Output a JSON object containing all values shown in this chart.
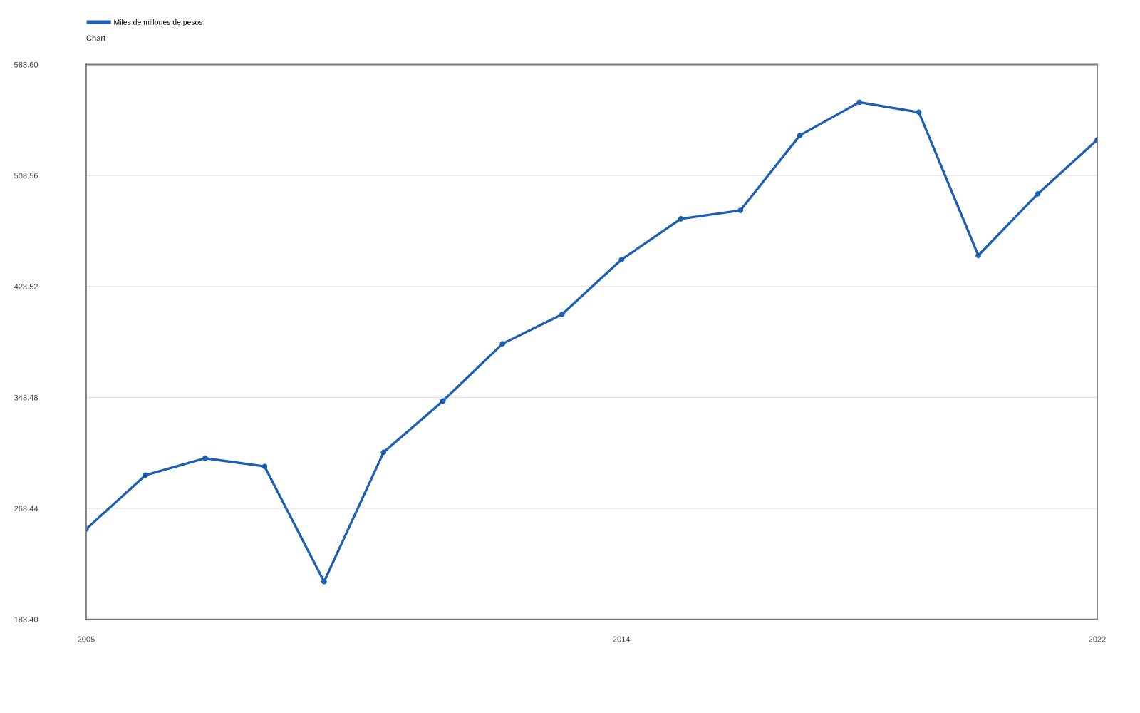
{
  "chart_data": {
    "type": "line",
    "title": "Chart",
    "x": [
      2005,
      2006,
      2007,
      2008,
      2009,
      2010,
      2011,
      2012,
      2013,
      2014,
      2015,
      2016,
      2017,
      2018,
      2019,
      2020,
      2021,
      2022
    ],
    "series": [
      {
        "name": "Miles de millones de pesos",
        "color": "#1c5fb3",
        "values": [
          253.5,
          292.5,
          304.6,
          298.7,
          215.6,
          308.9,
          346.0,
          387.2,
          408.4,
          447.9,
          477.3,
          483.4,
          537.5,
          561.4,
          554.2,
          450.9,
          495.3,
          534.3
        ]
      }
    ],
    "xlim": [
      2005,
      2022
    ],
    "xticks": [
      2005,
      2014,
      2022
    ],
    "ylim": [
      188.4,
      588.6
    ],
    "yticks": [
      {
        "value": 188.4,
        "label": "188.40"
      },
      {
        "value": 268.44,
        "label": "268.44"
      },
      {
        "value": 348.48,
        "label": "348.48"
      },
      {
        "value": 428.52,
        "label": "428.52"
      },
      {
        "value": 508.56,
        "label": "508.56"
      },
      {
        "value": 588.6,
        "label": "588.60"
      }
    ],
    "grid": "y",
    "legend": "top left",
    "marker": "circle",
    "line_style": "solid"
  }
}
